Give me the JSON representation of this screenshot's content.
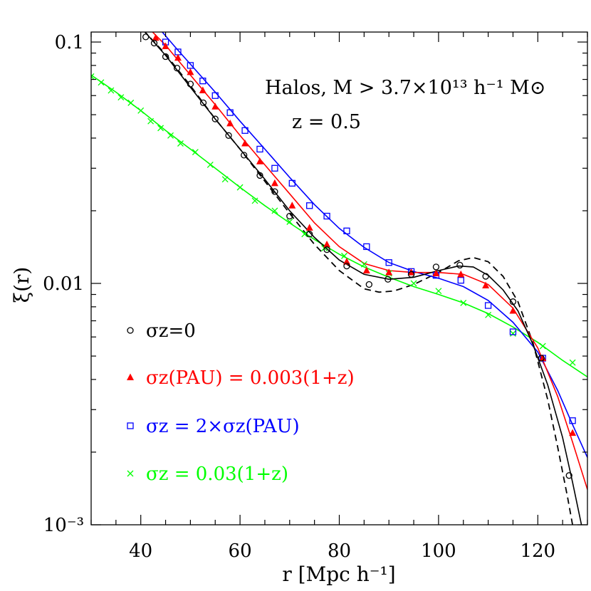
{
  "chart_data": {
    "type": "scatter",
    "xlabel": "r  [Mpc h⁻¹]",
    "ylabel": "ξ(r)",
    "xlim": [
      30,
      130
    ],
    "ylim": [
      0.001,
      0.11
    ],
    "yscale": "log",
    "grid": false,
    "legend_position": "left",
    "annotation": {
      "line1": "Halos, M > 3.7×10¹³ h⁻¹ M⊙",
      "line2": "z  =  0.5"
    },
    "xticks": [
      {
        "value": 40,
        "label": "40"
      },
      {
        "value": 60,
        "label": "60"
      },
      {
        "value": 80,
        "label": "80"
      },
      {
        "value": 100,
        "label": "100"
      },
      {
        "value": 120,
        "label": "120"
      }
    ],
    "yticks": [
      {
        "value": 0.1,
        "label": "0.1"
      },
      {
        "value": 0.01,
        "label": "0.01"
      },
      {
        "value": 0.001,
        "label": "10⁻³"
      }
    ],
    "series": [
      {
        "name": "σz=0",
        "color": "#000000",
        "marker": "circle",
        "points": [
          [
            41,
            0.105
          ],
          [
            42.7,
            0.099
          ],
          [
            45,
            0.087
          ],
          [
            47.3,
            0.078
          ],
          [
            50,
            0.067
          ],
          [
            52.6,
            0.056
          ],
          [
            55,
            0.048
          ],
          [
            57.7,
            0.041
          ],
          [
            60.8,
            0.034
          ],
          [
            64,
            0.028
          ],
          [
            67,
            0.024
          ],
          [
            70,
            0.019
          ],
          [
            74,
            0.016
          ],
          [
            77.5,
            0.0138
          ],
          [
            81.5,
            0.0118
          ],
          [
            86,
            0.0099
          ],
          [
            89.8,
            0.0104
          ],
          [
            94.5,
            0.0109
          ],
          [
            99.5,
            0.0117
          ],
          [
            104.3,
            0.0119
          ],
          [
            109.5,
            0.0107
          ],
          [
            115,
            0.0084
          ],
          [
            120.7,
            0.0049
          ],
          [
            126.3,
            0.0016
          ]
        ],
        "curve": [
          [
            40.5,
            0.112
          ],
          [
            45,
            0.088
          ],
          [
            50,
            0.065
          ],
          [
            55,
            0.048
          ],
          [
            60,
            0.036
          ],
          [
            65,
            0.027
          ],
          [
            70,
            0.02
          ],
          [
            75,
            0.0155
          ],
          [
            80,
            0.0125
          ],
          [
            85,
            0.0109
          ],
          [
            90,
            0.0104
          ],
          [
            95,
            0.0106
          ],
          [
            100,
            0.0113
          ],
          [
            104,
            0.0118
          ],
          [
            107,
            0.0117
          ],
          [
            110,
            0.0108
          ],
          [
            113,
            0.0094
          ],
          [
            116,
            0.0077
          ],
          [
            119,
            0.0056
          ],
          [
            122,
            0.0038
          ],
          [
            125,
            0.0023
          ],
          [
            127,
            0.0015
          ],
          [
            128.8,
            0.001
          ]
        ]
      },
      {
        "name": "σz(PAU)  =  0.003(1+z)",
        "color": "#ff0000",
        "marker": "triangle",
        "points": [
          [
            43,
            0.104
          ],
          [
            45,
            0.096
          ],
          [
            47.5,
            0.086
          ],
          [
            50,
            0.075
          ],
          [
            52.5,
            0.063
          ],
          [
            55,
            0.054
          ],
          [
            58,
            0.046
          ],
          [
            61,
            0.038
          ],
          [
            64,
            0.032
          ],
          [
            67,
            0.026
          ],
          [
            70.5,
            0.021
          ],
          [
            74,
            0.017
          ],
          [
            77.5,
            0.0145
          ],
          [
            81.5,
            0.0123
          ],
          [
            85.5,
            0.0113
          ],
          [
            90,
            0.0111
          ],
          [
            94.5,
            0.0111
          ],
          [
            99.5,
            0.011
          ],
          [
            104.5,
            0.0109
          ],
          [
            109.5,
            0.0098
          ],
          [
            115,
            0.0077
          ],
          [
            121,
            0.0049
          ],
          [
            127,
            0.0024
          ]
        ],
        "curve": [
          [
            42,
            0.112
          ],
          [
            45,
            0.097
          ],
          [
            50,
            0.073
          ],
          [
            55,
            0.055
          ],
          [
            60,
            0.041
          ],
          [
            65,
            0.031
          ],
          [
            70,
            0.0235
          ],
          [
            75,
            0.0178
          ],
          [
            80,
            0.0142
          ],
          [
            85,
            0.0121
          ],
          [
            90,
            0.0113
          ],
          [
            95,
            0.0111
          ],
          [
            100,
            0.0111
          ],
          [
            105,
            0.0109
          ],
          [
            110,
            0.0099
          ],
          [
            115,
            0.0079
          ],
          [
            120,
            0.0054
          ],
          [
            124,
            0.0034
          ],
          [
            127,
            0.0022
          ],
          [
            130,
            0.0014
          ]
        ]
      },
      {
        "name": "σz  =  2×σz(PAU)",
        "color": "#0000ff",
        "marker": "square",
        "points": [
          [
            45,
            0.1
          ],
          [
            47.5,
            0.091
          ],
          [
            50,
            0.08
          ],
          [
            52.5,
            0.069
          ],
          [
            55,
            0.06
          ],
          [
            58,
            0.051
          ],
          [
            61,
            0.043
          ],
          [
            64,
            0.036
          ],
          [
            67,
            0.03
          ],
          [
            70.5,
            0.026
          ],
          [
            74,
            0.021
          ],
          [
            77.5,
            0.019
          ],
          [
            81.5,
            0.0165
          ],
          [
            85.5,
            0.0142
          ],
          [
            90,
            0.0122
          ],
          [
            94.5,
            0.0112
          ],
          [
            99.5,
            0.0108
          ],
          [
            104.5,
            0.0103
          ],
          [
            110,
            0.0081
          ],
          [
            115,
            0.0063
          ],
          [
            121,
            0.0049
          ],
          [
            127,
            0.0027
          ]
        ],
        "curve": [
          [
            44,
            0.112
          ],
          [
            47,
            0.095
          ],
          [
            50,
            0.081
          ],
          [
            55,
            0.062
          ],
          [
            60,
            0.047
          ],
          [
            65,
            0.036
          ],
          [
            70,
            0.0275
          ],
          [
            75,
            0.0212
          ],
          [
            80,
            0.0169
          ],
          [
            85,
            0.0141
          ],
          [
            90,
            0.0122
          ],
          [
            95,
            0.0112
          ],
          [
            100,
            0.0105
          ],
          [
            105,
            0.0097
          ],
          [
            110,
            0.0085
          ],
          [
            115,
            0.0069
          ],
          [
            120,
            0.0052
          ],
          [
            124,
            0.0036
          ],
          [
            127,
            0.0026
          ],
          [
            130,
            0.0019
          ]
        ]
      },
      {
        "name": "σz  =  0.03(1+z)",
        "color": "#00ff00",
        "marker": "cross",
        "points": [
          [
            30,
            0.072
          ],
          [
            32,
            0.068
          ],
          [
            34,
            0.063
          ],
          [
            36,
            0.059
          ],
          [
            38,
            0.056
          ],
          [
            40,
            0.052
          ],
          [
            42,
            0.047
          ],
          [
            44,
            0.044
          ],
          [
            46,
            0.041
          ],
          [
            48,
            0.038
          ],
          [
            51,
            0.035
          ],
          [
            54,
            0.031
          ],
          [
            57,
            0.027
          ],
          [
            60,
            0.025
          ],
          [
            63,
            0.022
          ],
          [
            67,
            0.02
          ],
          [
            70,
            0.018
          ],
          [
            73,
            0.016
          ],
          [
            77,
            0.014
          ],
          [
            81,
            0.013
          ],
          [
            85,
            0.012
          ],
          [
            90,
            0.011
          ],
          [
            95,
            0.01
          ],
          [
            100,
            0.0093
          ],
          [
            105,
            0.0083
          ],
          [
            110,
            0.0074
          ],
          [
            115,
            0.0062
          ],
          [
            121,
            0.0055
          ],
          [
            127,
            0.0047
          ]
        ],
        "curve": [
          [
            30,
            0.073
          ],
          [
            35,
            0.062
          ],
          [
            40,
            0.052
          ],
          [
            45,
            0.043
          ],
          [
            50,
            0.036
          ],
          [
            55,
            0.03
          ],
          [
            60,
            0.025
          ],
          [
            65,
            0.021
          ],
          [
            70,
            0.0178
          ],
          [
            75,
            0.0152
          ],
          [
            80,
            0.0132
          ],
          [
            85,
            0.0117
          ],
          [
            90,
            0.0106
          ],
          [
            95,
            0.0097
          ],
          [
            100,
            0.009
          ],
          [
            105,
            0.0083
          ],
          [
            110,
            0.0075
          ],
          [
            115,
            0.0066
          ],
          [
            120,
            0.0057
          ],
          [
            125,
            0.0048
          ],
          [
            130,
            0.0041
          ]
        ]
      }
    ],
    "reference_curve": {
      "style": "dashed",
      "color": "#000000",
      "curve": [
        [
          40.5,
          0.112
        ],
        [
          45,
          0.089
        ],
        [
          50,
          0.066
        ],
        [
          55,
          0.048
        ],
        [
          60,
          0.036
        ],
        [
          65,
          0.0265
        ],
        [
          70,
          0.0195
        ],
        [
          75,
          0.0145
        ],
        [
          80,
          0.0113
        ],
        [
          85,
          0.0095
        ],
        [
          88,
          0.0092
        ],
        [
          91,
          0.0093
        ],
        [
          95,
          0.0099
        ],
        [
          100,
          0.0111
        ],
        [
          104,
          0.0124
        ],
        [
          107,
          0.0128
        ],
        [
          110,
          0.0123
        ],
        [
          113,
          0.0107
        ],
        [
          116,
          0.0084
        ],
        [
          119,
          0.0057
        ],
        [
          122,
          0.0033
        ],
        [
          124,
          0.0021
        ],
        [
          126,
          0.0013
        ],
        [
          127,
          0.001
        ]
      ]
    }
  }
}
